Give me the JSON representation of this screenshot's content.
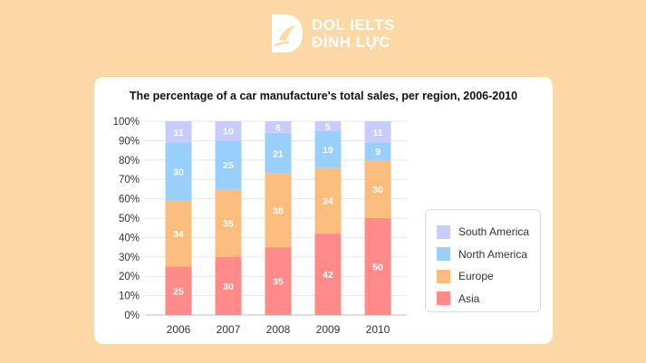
{
  "brand": {
    "line1": "DOL IELTS",
    "line2": "ĐÌNH LỰC"
  },
  "chart_data": {
    "type": "bar",
    "stacked": true,
    "title": "The percentage of a car manufacture's total sales, per region, 2006-2010",
    "categories": [
      "2006",
      "2007",
      "2008",
      "2009",
      "2010"
    ],
    "series": [
      {
        "name": "Asia",
        "color": "#ff8a8a",
        "values": [
          25,
          30,
          35,
          42,
          50
        ]
      },
      {
        "name": "Europe",
        "color": "#fbbd7e",
        "values": [
          34,
          35,
          38,
          34,
          30
        ]
      },
      {
        "name": "North America",
        "color": "#99d0fb",
        "values": [
          30,
          25,
          21,
          19,
          9
        ]
      },
      {
        "name": "South America",
        "color": "#c8ccfb",
        "values": [
          11,
          10,
          6,
          5,
          11
        ]
      }
    ],
    "y_ticks": [
      "0%",
      "10%",
      "20%",
      "30%",
      "40%",
      "50%",
      "60%",
      "70%",
      "80%",
      "90%",
      "100%"
    ],
    "ylim": [
      0,
      100
    ],
    "grid": true,
    "legend_position": "right",
    "legend_order": [
      "South America",
      "North America",
      "Europe",
      "Asia"
    ]
  }
}
